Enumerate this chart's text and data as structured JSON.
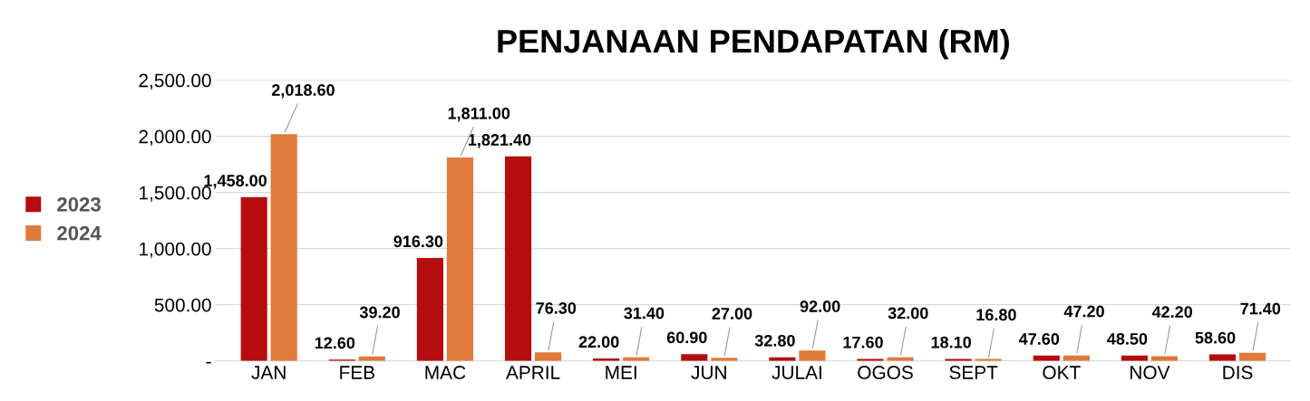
{
  "chart_data": {
    "type": "bar",
    "title": "PENJANAAN PENDAPATAN (RM)",
    "categories": [
      "JAN",
      "FEB",
      "MAC",
      "APRIL",
      "MEI",
      "JUN",
      "JULAI",
      "OGOS",
      "SEPT",
      "OKT",
      "NOV",
      "DIS"
    ],
    "series": [
      {
        "name": "2023",
        "color": "#b50d0d",
        "values": [
          1458.0,
          12.6,
          916.3,
          1821.4,
          22.0,
          60.9,
          32.8,
          17.6,
          18.1,
          47.6,
          48.5,
          58.6
        ],
        "value_labels": [
          "1,458.00",
          "12.60",
          "916.30",
          "1,821.40",
          "22.00",
          "60.90",
          "32.80",
          "17.60",
          "18.10",
          "47.60",
          "48.50",
          "58.60"
        ]
      },
      {
        "name": "2024",
        "color": "#e0793a",
        "values": [
          2018.6,
          39.2,
          1811.0,
          76.3,
          31.4,
          27.0,
          92.0,
          32.0,
          16.8,
          47.2,
          42.2,
          71.4
        ],
        "value_labels": [
          "2,018.60",
          "39.20",
          "1,811.00",
          "76.30",
          "31.40",
          "27.00",
          "92.00",
          "32.00",
          "16.80",
          "47.20",
          "42.20",
          "71.40"
        ]
      }
    ],
    "ylim": [
      0,
      2500
    ],
    "yticks": [
      {
        "value": 0,
        "label": "-"
      },
      {
        "value": 500,
        "label": "500.00"
      },
      {
        "value": 1000,
        "label": "1,000.00"
      },
      {
        "value": 1500,
        "label": "1,500.00"
      },
      {
        "value": 2000,
        "label": "2,000.00"
      },
      {
        "value": 2500,
        "label": "2,500.00"
      }
    ],
    "grid": "y",
    "legend": "left"
  }
}
